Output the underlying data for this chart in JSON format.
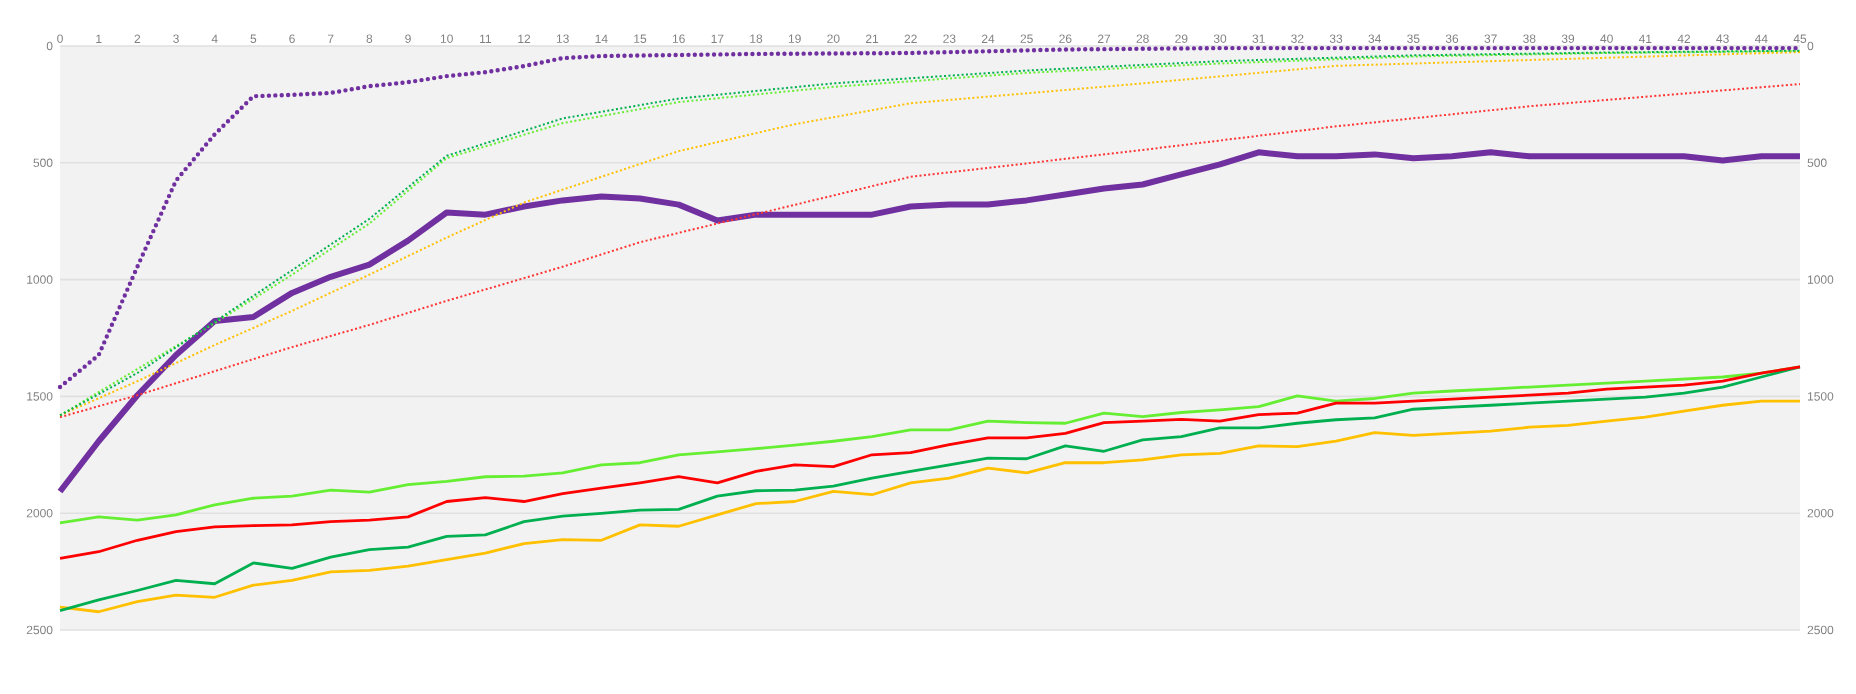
{
  "chart_data": {
    "type": "line",
    "xlim": [
      0,
      45
    ],
    "xticks": [
      0,
      1,
      2,
      3,
      4,
      5,
      6,
      7,
      8,
      9,
      10,
      11,
      12,
      13,
      14,
      15,
      16,
      17,
      18,
      19,
      20,
      21,
      22,
      23,
      24,
      25,
      26,
      27,
      28,
      29,
      30,
      31,
      32,
      33,
      34,
      35,
      36,
      37,
      38,
      39,
      40,
      41,
      42,
      43,
      44,
      45
    ],
    "ylim": [
      2500,
      0
    ],
    "yticks": [
      0,
      500,
      1000,
      1500,
      2000,
      2500
    ],
    "y2lim": [
      2500,
      0
    ],
    "y2ticks": [
      0,
      500,
      1000,
      1500,
      2000,
      2500
    ],
    "grid": "y",
    "legend": false,
    "marker": "none",
    "series": [
      {
        "color": "#66ee33",
        "line_style": "solid",
        "x": [
          0,
          1,
          2,
          3,
          4,
          5,
          6,
          7,
          8,
          9,
          10,
          11,
          12,
          13,
          14,
          15,
          16,
          17,
          18,
          19,
          20,
          21,
          22,
          23,
          24,
          25,
          26,
          27,
          28,
          29,
          30,
          31,
          32,
          33,
          34,
          35,
          36,
          37,
          38,
          39,
          40,
          41,
          42,
          43,
          44,
          45
        ],
        "values": [
          2042,
          2016,
          2030,
          2007,
          1964,
          1936,
          1927,
          1901,
          1910,
          1878,
          1864,
          1844,
          1841,
          1827,
          1793,
          1784,
          1750,
          1738,
          1724,
          1709,
          1692,
          1672,
          1643,
          1643,
          1606,
          1612,
          1615,
          1572,
          1587,
          1569,
          1558,
          1544,
          1498,
          1520,
          1509,
          1486,
          1477,
          1469,
          1460,
          1452,
          1443,
          1435,
          1426,
          1417,
          1400,
          1374
        ]
      },
      {
        "color": "#ffc000",
        "line_style": "solid",
        "x": [
          0,
          1,
          2,
          3,
          4,
          5,
          6,
          7,
          8,
          9,
          10,
          11,
          12,
          13,
          14,
          15,
          16,
          17,
          18,
          19,
          20,
          21,
          22,
          23,
          24,
          25,
          26,
          27,
          28,
          29,
          30,
          31,
          32,
          33,
          34,
          35,
          36,
          37,
          38,
          39,
          40,
          41,
          42,
          43,
          44,
          45
        ],
        "values": [
          2402,
          2422,
          2379,
          2351,
          2360,
          2308,
          2288,
          2251,
          2245,
          2227,
          2199,
          2171,
          2130,
          2113,
          2116,
          2050,
          2056,
          2007,
          1959,
          1950,
          1907,
          1921,
          1870,
          1850,
          1807,
          1827,
          1784,
          1784,
          1772,
          1750,
          1744,
          1712,
          1715,
          1692,
          1655,
          1667,
          1658,
          1649,
          1632,
          1624,
          1606,
          1589,
          1563,
          1538,
          1520,
          1520
        ]
      },
      {
        "color": "#00b050",
        "line_style": "solid",
        "x": [
          0,
          1,
          2,
          3,
          4,
          5,
          6,
          7,
          8,
          9,
          10,
          11,
          12,
          13,
          14,
          15,
          16,
          17,
          18,
          19,
          20,
          21,
          22,
          23,
          24,
          25,
          26,
          27,
          28,
          29,
          30,
          31,
          32,
          33,
          34,
          35,
          36,
          37,
          38,
          39,
          40,
          41,
          42,
          43,
          44,
          45
        ],
        "values": [
          2417,
          2371,
          2331,
          2288,
          2302,
          2213,
          2236,
          2188,
          2156,
          2145,
          2099,
          2093,
          2036,
          2013,
          2001,
          1987,
          1984,
          1927,
          1904,
          1901,
          1884,
          1850,
          1821,
          1793,
          1764,
          1767,
          1712,
          1735,
          1686,
          1672,
          1635,
          1635,
          1615,
          1600,
          1592,
          1555,
          1546,
          1538,
          1529,
          1520,
          1512,
          1503,
          1486,
          1460,
          1417,
          1374
        ]
      },
      {
        "color": "#7030a0",
        "line_style": "solid",
        "x": [
          0,
          1,
          2,
          3,
          4,
          5,
          6,
          7,
          8,
          9,
          10,
          11,
          12,
          13,
          14,
          15,
          16,
          17,
          18,
          19,
          20,
          21,
          22,
          23,
          24,
          25,
          26,
          27,
          28,
          29,
          30,
          31,
          32,
          33,
          34,
          35,
          36,
          37,
          38,
          39,
          40,
          41,
          42,
          43,
          44,
          45
        ],
        "values": [
          1907,
          1692,
          1495,
          1323,
          1177,
          1160,
          1057,
          988,
          936,
          833,
          713,
          722,
          687,
          661,
          644,
          653,
          679,
          747,
          722,
          722,
          722,
          722,
          687,
          679,
          679,
          661,
          636,
          610,
          593,
          550,
          507,
          455,
          472,
          472,
          464,
          481,
          472,
          455,
          472,
          472,
          472,
          472,
          472,
          490,
          472,
          472
        ]
      },
      {
        "color": "#ff0000",
        "line_style": "solid",
        "x": [
          0,
          1,
          2,
          3,
          4,
          5,
          6,
          7,
          8,
          9,
          10,
          11,
          12,
          13,
          14,
          15,
          16,
          17,
          18,
          19,
          20,
          21,
          22,
          23,
          24,
          25,
          26,
          27,
          28,
          29,
          30,
          31,
          32,
          33,
          34,
          35,
          36,
          37,
          38,
          39,
          40,
          41,
          42,
          43,
          44,
          45
        ],
        "values": [
          2193,
          2165,
          2116,
          2079,
          2059,
          2053,
          2050,
          2036,
          2030,
          2016,
          1950,
          1933,
          1950,
          1916,
          1893,
          1870,
          1844,
          1870,
          1821,
          1793,
          1801,
          1750,
          1741,
          1707,
          1678,
          1678,
          1658,
          1612,
          1606,
          1598,
          1606,
          1578,
          1572,
          1529,
          1529,
          1520,
          1512,
          1503,
          1495,
          1486,
          1469,
          1460,
          1452,
          1435,
          1400,
          1374
        ]
      },
      {
        "color": "#66ee33",
        "line_style": "dotted",
        "x": [
          0,
          2,
          4,
          6,
          8,
          10,
          13,
          16,
          20,
          25,
          30,
          35,
          40,
          45
        ],
        "values": [
          1581,
          1383,
          1186,
          979,
          760,
          480,
          330,
          240,
          175,
          115,
          75,
          45,
          30,
          22
        ]
      },
      {
        "color": "#ff3333",
        "line_style": "dotted",
        "x": [
          0,
          2,
          4,
          6,
          8,
          10,
          13,
          15,
          22,
          28,
          33,
          38,
          45
        ],
        "values": [
          1589,
          1495,
          1392,
          1289,
          1194,
          1091,
          945,
          840,
          560,
          445,
          344,
          258,
          163
        ]
      },
      {
        "color": "#ffc000",
        "line_style": "dotted",
        "x": [
          0,
          2,
          4,
          6,
          8,
          10,
          12,
          16,
          19,
          22,
          28,
          33,
          38,
          45
        ],
        "values": [
          1581,
          1435,
          1280,
          1134,
          979,
          820,
          670,
          450,
          335,
          245,
          160,
          85,
          60,
          26
        ]
      },
      {
        "color": "#00b050",
        "line_style": "dotted",
        "x": [
          0,
          2,
          4,
          6,
          8,
          10,
          13,
          16,
          20,
          25,
          30,
          35,
          40,
          45
        ],
        "values": [
          1581,
          1400,
          1180,
          960,
          740,
          470,
          310,
          225,
          160,
          105,
          65,
          40,
          28,
          20
        ]
      },
      {
        "color": "#7030a0",
        "line_style": "dotted",
        "x": [
          0,
          1,
          2,
          3,
          4,
          5,
          6,
          7,
          8,
          9,
          10,
          11,
          12,
          13,
          14,
          18,
          22,
          26,
          30,
          45
        ],
        "values": [
          1460,
          1323,
          945,
          576,
          378,
          215,
          209,
          201,
          172,
          155,
          129,
          112,
          86,
          52,
          43,
          34,
          30,
          15,
          9,
          9
        ]
      }
    ]
  }
}
